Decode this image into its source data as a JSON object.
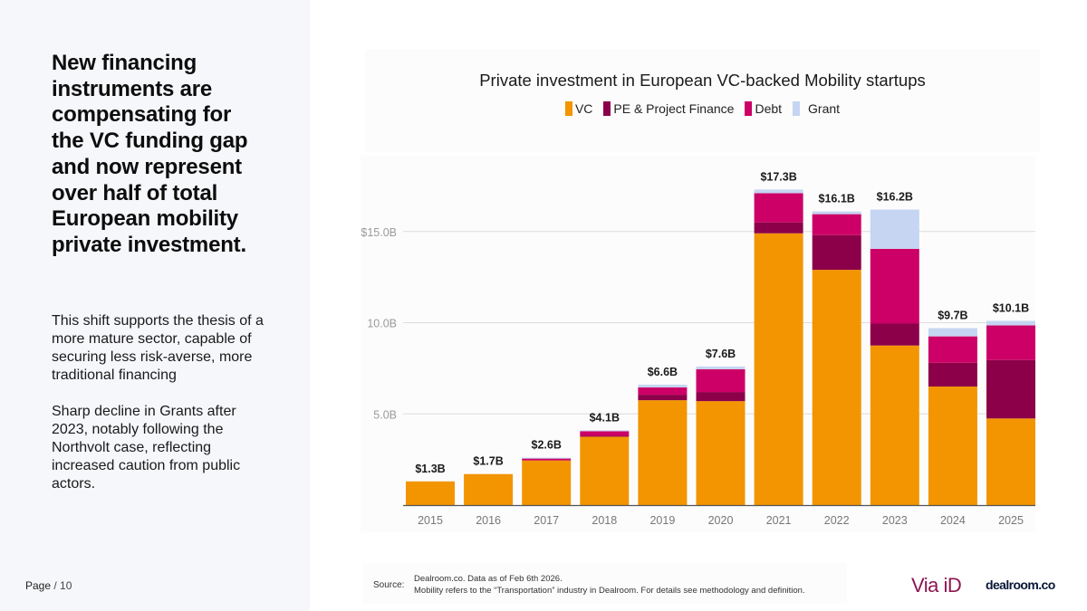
{
  "sidebar": {
    "headline": "New financing instruments are compensating for the VC funding gap and now represent over half of total European mobility private investment.",
    "paragraphs": [
      "This shift supports the thesis of a more mature sector, capable of securing less risk-averse, more traditional financing",
      "Sharp decline in Grants after 2023, notably following the Northvolt case, reflecting increased caution from public actors."
    ],
    "page_label": "Page",
    "page_total": "/ 10"
  },
  "footer": {
    "source_label": "Source:",
    "source_line1": "Dealroom.co. Data as of Feb 6th 2026.",
    "source_line2": "Mobility refers to the “Transportation” industry in Dealroom. For details see methodology and definition.",
    "logo_viaid": "Via iD",
    "logo_dealroom": "dealroom.co"
  },
  "colors": {
    "VC": "#f29500",
    "PE & Project Finance": "#8c0049",
    "Debt": "#cc0066",
    "Grant": "#c5d5f2",
    "brand_viaid": "#8c1651",
    "brand_dealroom": "#0b1736"
  },
  "chart_data": {
    "type": "bar",
    "stacked": true,
    "title": "Private investment in European VC-backed Mobility startups",
    "xlabel": "",
    "ylabel": "",
    "categories": [
      "2015",
      "2016",
      "2017",
      "2018",
      "2019",
      "2020",
      "2021",
      "2022",
      "2023",
      "2024",
      "2025"
    ],
    "series": [
      {
        "name": "VC",
        "values": [
          1.3,
          1.7,
          2.45,
          3.75,
          5.75,
          5.7,
          14.9,
          12.9,
          8.75,
          6.5,
          4.75
        ]
      },
      {
        "name": "PE & Project Finance",
        "values": [
          0,
          0,
          0,
          0.05,
          0.3,
          0.5,
          0.6,
          1.9,
          1.2,
          1.3,
          3.2
        ]
      },
      {
        "name": "Debt",
        "values": [
          0,
          0,
          0.1,
          0.25,
          0.4,
          1.25,
          1.6,
          1.15,
          4.1,
          1.45,
          1.9
        ]
      },
      {
        "name": "Grant",
        "values": [
          0,
          0,
          0.05,
          0.05,
          0.15,
          0.15,
          0.2,
          0.15,
          2.15,
          0.45,
          0.25
        ]
      }
    ],
    "totals_labels": [
      "$1.3B",
      "$1.7B",
      "$2.6B",
      "$4.1B",
      "$6.6B",
      "$7.6B",
      "$17.3B",
      "$16.1B",
      "$16.2B",
      "$9.7B",
      "$10.1B"
    ],
    "totals": [
      1.3,
      1.7,
      2.6,
      4.1,
      6.6,
      7.6,
      17.3,
      16.1,
      16.2,
      9.7,
      10.1
    ],
    "yticks": [
      5,
      10,
      15
    ],
    "ytick_labels": [
      "5.0B",
      "10.0B",
      "$15.0B"
    ],
    "ylim": [
      0,
      19.8
    ],
    "grid": true,
    "legend_position": "top-center"
  }
}
